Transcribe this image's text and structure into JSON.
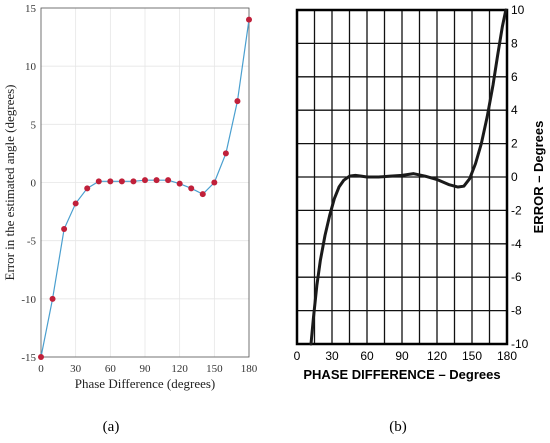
{
  "charts": [
    {
      "panel_label": "(a)",
      "chart_data": {
        "type": "line",
        "xlabel": "Phase Difference (degrees)",
        "ylabel": "Error in the estimated angle (degrees)",
        "xlim": [
          0,
          180
        ],
        "ylim": [
          -15,
          15
        ],
        "xticks": [
          0,
          30,
          60,
          90,
          120,
          150,
          180
        ],
        "yticks": [
          -15,
          -10,
          -5,
          0,
          5,
          10,
          15
        ],
        "grid": true,
        "line_color": "#4a9fcf",
        "marker_color": "#c0203a",
        "series": [
          {
            "x": [
              0,
              10,
              20,
              30,
              40,
              50,
              60,
              70,
              80,
              90,
              100,
              110,
              120,
              130,
              140,
              150,
              160,
              170,
              180
            ],
            "y": [
              -15,
              -10,
              -4,
              -1.8,
              -0.5,
              0.1,
              0.1,
              0.1,
              0.1,
              0.2,
              0.2,
              0.2,
              -0.1,
              -0.5,
              -1,
              0,
              2.5,
              7,
              14
            ]
          }
        ]
      }
    },
    {
      "panel_label": "(b)",
      "chart_data": {
        "type": "line",
        "xlabel": "PHASE DIFFERENCE – Degrees",
        "ylabel": "ERROR – Degrees",
        "xlim": [
          0,
          180
        ],
        "ylim": [
          -10,
          10
        ],
        "xticks": [
          0,
          30,
          60,
          90,
          120,
          150,
          180
        ],
        "yticks": [
          -10,
          -8,
          -6,
          -4,
          -2,
          0,
          2,
          4,
          6,
          8,
          10
        ],
        "grid": true,
        "y_axis_side": "right",
        "line_color": "#1a1a1a",
        "series": [
          {
            "x": [
              12,
              14,
              17,
              20,
              24,
              28,
              32,
              36,
              40,
              45,
              50,
              55,
              60,
              70,
              80,
              90,
              100,
              110,
              120,
              130,
              138,
              143,
              148,
              153,
              158,
              163,
              168,
              172,
              176,
              179
            ],
            "y": [
              -10,
              -8.5,
              -6.5,
              -5,
              -3.5,
              -2.3,
              -1.3,
              -0.6,
              -0.2,
              0.05,
              0.1,
              0.05,
              0,
              0,
              0.05,
              0.1,
              0.2,
              0.05,
              -0.15,
              -0.45,
              -0.6,
              -0.55,
              -0.1,
              0.8,
              2,
              3.6,
              5.5,
              7.3,
              9,
              10
            ]
          }
        ]
      }
    }
  ]
}
